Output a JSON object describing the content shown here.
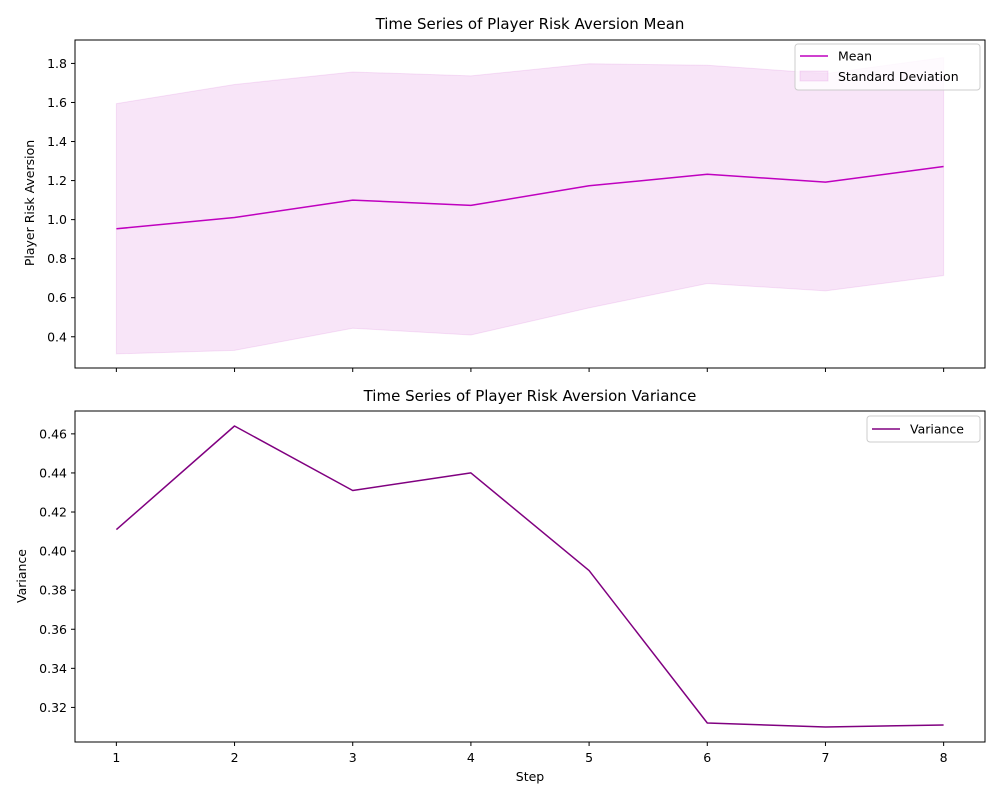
{
  "chart_data": [
    {
      "type": "line",
      "title": "Time Series of Player Risk Aversion Mean",
      "xlabel": "",
      "ylabel": "Player Risk Aversion",
      "x": [
        1,
        2,
        3,
        4,
        5,
        6,
        7,
        8
      ],
      "xlim": [
        0.65,
        8.35
      ],
      "ylim": [
        0.24,
        1.92
      ],
      "yticks": [
        0.4,
        0.6,
        0.8,
        1.0,
        1.2,
        1.4,
        1.6,
        1.8
      ],
      "ytick_labels": [
        "0.4",
        "0.6",
        "0.8",
        "1.0",
        "1.2",
        "1.4",
        "1.6",
        "1.8"
      ],
      "show_xtick_labels": false,
      "grid": false,
      "legend_position": "top-right",
      "series": [
        {
          "name": "Mean",
          "kind": "line",
          "color": "#bf00bf",
          "values": [
            0.953,
            1.011,
            1.1,
            1.073,
            1.173,
            1.232,
            1.192,
            1.272
          ]
        }
      ],
      "band": {
        "name": "Standard Deviation",
        "color": "#bf00bf",
        "opacity": 0.1,
        "lower": [
          0.312,
          0.33,
          0.444,
          0.409,
          0.548,
          0.673,
          0.635,
          0.714
        ],
        "upper": [
          1.594,
          1.692,
          1.756,
          1.736,
          1.798,
          1.791,
          1.748,
          1.83
        ]
      }
    },
    {
      "type": "line",
      "title": "Time Series of Player Risk Aversion Variance",
      "xlabel": "Step",
      "ylabel": "Variance",
      "x": [
        1,
        2,
        3,
        4,
        5,
        6,
        7,
        8
      ],
      "xlim": [
        0.65,
        8.35
      ],
      "ylim": [
        0.3023,
        0.4717
      ],
      "yticks": [
        0.32,
        0.34,
        0.36,
        0.38,
        0.4,
        0.42,
        0.44,
        0.46
      ],
      "ytick_labels": [
        "0.32",
        "0.34",
        "0.36",
        "0.38",
        "0.40",
        "0.42",
        "0.44",
        "0.46"
      ],
      "xtick_labels": [
        "1",
        "2",
        "3",
        "4",
        "5",
        "6",
        "7",
        "8"
      ],
      "show_xtick_labels": true,
      "grid": false,
      "legend_position": "top-right",
      "series": [
        {
          "name": "Variance",
          "kind": "line",
          "color": "#800080",
          "values": [
            0.411,
            0.464,
            0.431,
            0.44,
            0.39,
            0.312,
            0.31,
            0.311
          ]
        }
      ]
    }
  ]
}
